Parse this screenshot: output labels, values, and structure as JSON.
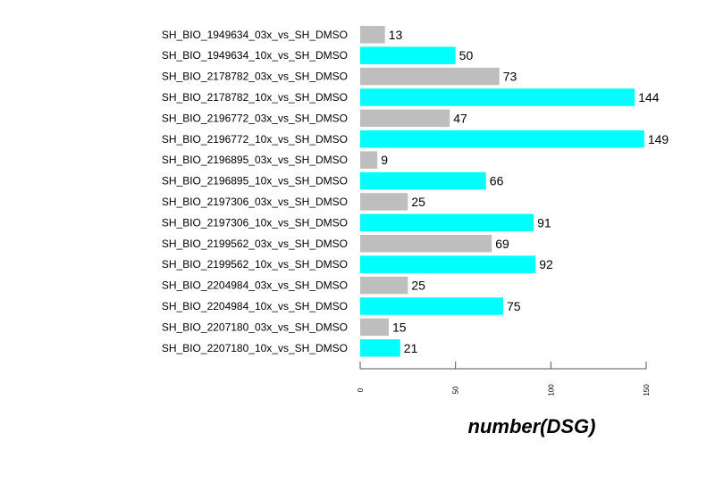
{
  "chart_data": {
    "type": "bar",
    "orientation": "horizontal",
    "categories": [
      "SH_BIO_1949634_03x_vs_SH_DMSO",
      "SH_BIO_1949634_10x_vs_SH_DMSO",
      "SH_BIO_2178782_03x_vs_SH_DMSO",
      "SH_BIO_2178782_10x_vs_SH_DMSO",
      "SH_BIO_2196772_03x_vs_SH_DMSO",
      "SH_BIO_2196772_10x_vs_SH_DMSO",
      "SH_BIO_2196895_03x_vs_SH_DMSO",
      "SH_BIO_2196895_10x_vs_SH_DMSO",
      "SH_BIO_2197306_03x_vs_SH_DMSO",
      "SH_BIO_2197306_10x_vs_SH_DMSO",
      "SH_BIO_2199562_03x_vs_SH_DMSO",
      "SH_BIO_2199562_10x_vs_SH_DMSO",
      "SH_BIO_2204984_03x_vs_SH_DMSO",
      "SH_BIO_2204984_10x_vs_SH_DMSO",
      "SH_BIO_2207180_03x_vs_SH_DMSO",
      "SH_BIO_2207180_10x_vs_SH_DMSO"
    ],
    "values": [
      13,
      50,
      73,
      144,
      47,
      149,
      9,
      66,
      25,
      91,
      69,
      92,
      25,
      75,
      15,
      21
    ],
    "value_labels": [
      "13",
      "50",
      "73",
      "144",
      "47",
      "149",
      "9",
      "66",
      "25",
      "91",
      "69",
      "92",
      "25",
      "75",
      "15",
      "21"
    ],
    "bar_colors": [
      "#bebebe",
      "#00ffff"
    ],
    "xlabel": "number(DSG)",
    "xlim": [
      0,
      150
    ],
    "xticks": [
      0,
      50,
      100,
      150
    ],
    "xtick_labels": [
      "0",
      "50",
      "100",
      "150"
    ],
    "grid": false,
    "legend": "none"
  }
}
